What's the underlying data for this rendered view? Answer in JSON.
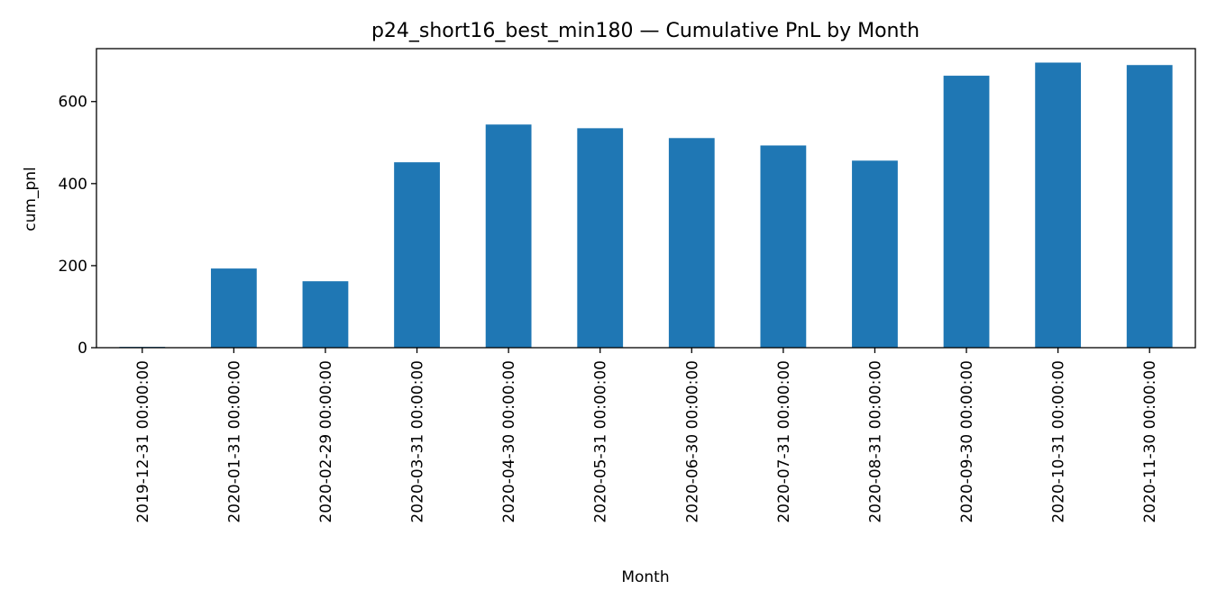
{
  "chart_data": {
    "type": "bar",
    "title": "p24_short16_best_min180 — Cumulative PnL by Month",
    "xlabel": "Month",
    "ylabel": "cum_pnl",
    "categories": [
      "2019-12-31 00:00:00",
      "2020-01-31 00:00:00",
      "2020-02-29 00:00:00",
      "2020-03-31 00:00:00",
      "2020-04-30 00:00:00",
      "2020-05-31 00:00:00",
      "2020-06-30 00:00:00",
      "2020-07-31 00:00:00",
      "2020-08-31 00:00:00",
      "2020-09-30 00:00:00",
      "2020-10-31 00:00:00",
      "2020-11-30 00:00:00"
    ],
    "values": [
      2,
      193,
      162,
      452,
      544,
      535,
      511,
      493,
      456,
      663,
      695,
      689
    ],
    "ylim": [
      0,
      729
    ],
    "yticks": [
      0,
      200,
      400,
      600
    ],
    "grid": false,
    "legend": "none",
    "bar_color": "#1f77b4"
  }
}
